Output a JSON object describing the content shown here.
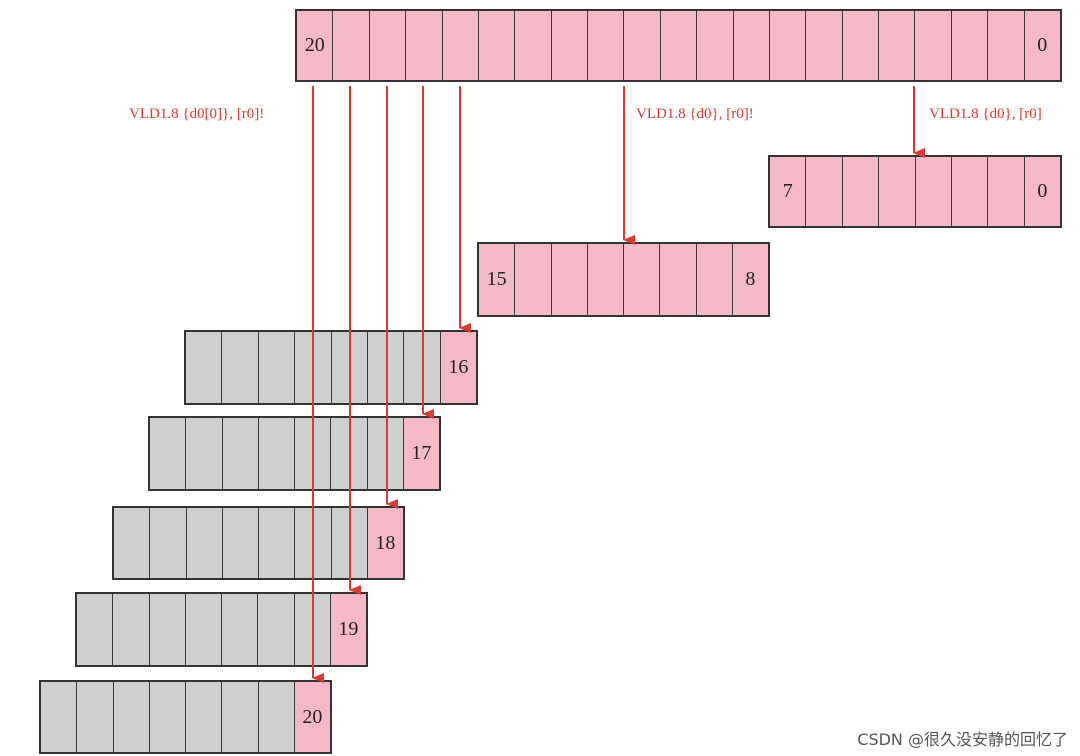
{
  "source_register": {
    "high_label": "20",
    "low_label": "0"
  },
  "instruction_labels": {
    "lane_load": "VLD1.8 {d0[0]}, [r0]!",
    "mid_load": "VLD1.8 {d0}, [r0]!",
    "right_load": "VLD1.8 {d0}, [r0]"
  },
  "register_d_low": {
    "high_label": "7",
    "low_label": "0"
  },
  "register_d_mid": {
    "high_label": "15",
    "low_label": "8"
  },
  "lane_registers": [
    "16",
    "17",
    "18",
    "19",
    "20"
  ],
  "colors": {
    "pink_cell": "#f5b8c6",
    "gray_cell": "#cfcfcf",
    "arrow": "#d93a32"
  },
  "watermark": "CSDN @很久没安静的回忆了"
}
